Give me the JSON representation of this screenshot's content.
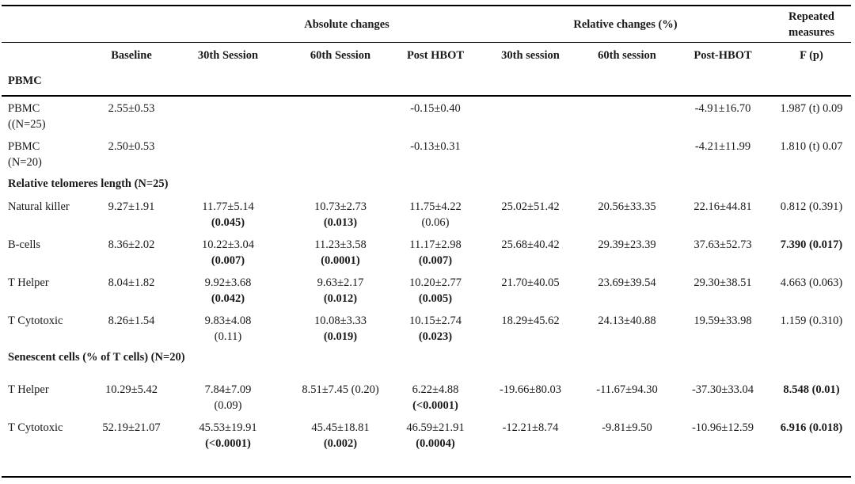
{
  "header": {
    "groups": {
      "absolute": "Absolute changes",
      "relative": "Relative changes (%)",
      "repeated_line1": "Repeated",
      "repeated_line2": "measures"
    },
    "columns": [
      "Baseline",
      "30th Session",
      "60th Session",
      "Post HBOT",
      "30th session",
      "60th session",
      "Post-HBOT",
      "F (p)"
    ]
  },
  "sections": {
    "pbmc": "PBMC",
    "telomeres": "Relative telomeres length (N=25)",
    "senescent": "Senescent cells (% of T cells) (N=20)"
  },
  "rows": [
    {
      "label": [
        "PBMC",
        "((N=25)"
      ],
      "cells": [
        [
          "2.55±0.53"
        ],
        [],
        [],
        [
          "-0.15±0.40"
        ],
        [],
        [],
        [
          "-4.91±16.70"
        ],
        [
          "1.987 (t) 0.09"
        ]
      ]
    },
    {
      "label": [
        "PBMC",
        "(N=20)"
      ],
      "cells": [
        [
          "2.50±0.53"
        ],
        [],
        [],
        [
          "-0.13±0.31"
        ],
        [],
        [],
        [
          "-4.21±11.99"
        ],
        [
          "1.810 (t) 0.07"
        ]
      ]
    },
    {
      "label": [
        "Natural killer"
      ],
      "cells": [
        [
          "9.27±1.91"
        ],
        [
          "11.77±5.14",
          "(0.045)"
        ],
        [
          "10.73±2.73",
          "(0.013)"
        ],
        [
          "11.75±4.22",
          "(0.06)"
        ],
        [
          "25.02±51.42"
        ],
        [
          "20.56±33.35"
        ],
        [
          "22.16±44.81"
        ],
        [
          "0.812 (0.391)"
        ]
      ]
    },
    {
      "label": [
        "B-cells"
      ],
      "cells": [
        [
          "8.36±2.02"
        ],
        [
          "10.22±3.04",
          "(0.007)"
        ],
        [
          "11.23±3.58",
          "(0.0001)"
        ],
        [
          "11.17±2.98",
          "(0.007)"
        ],
        [
          "25.68±40.42"
        ],
        [
          "29.39±23.39"
        ],
        [
          "37.63±52.73"
        ],
        [
          "7.390 (0.017)"
        ]
      ]
    },
    {
      "label": [
        "T Helper"
      ],
      "cells": [
        [
          "8.04±1.82"
        ],
        [
          "9.92±3.68",
          "(0.042)"
        ],
        [
          "9.63±2.17",
          "(0.012)"
        ],
        [
          "10.20±2.77",
          "(0.005)"
        ],
        [
          "21.70±40.05"
        ],
        [
          "23.69±39.54"
        ],
        [
          "29.30±38.51"
        ],
        [
          "4.663 (0.063)"
        ]
      ]
    },
    {
      "label": [
        "T Cytotoxic"
      ],
      "cells": [
        [
          "8.26±1.54"
        ],
        [
          "9.83±4.08",
          "(0.11)"
        ],
        [
          "10.08±3.33",
          "(0.019)"
        ],
        [
          "10.15±2.74",
          "(0.023)"
        ],
        [
          "18.29±45.62"
        ],
        [
          "24.13±40.88"
        ],
        [
          "19.59±33.98"
        ],
        [
          "1.159 (0.310)"
        ]
      ]
    },
    {
      "label": [
        "T Helper"
      ],
      "cells": [
        [
          "10.29±5.42"
        ],
        [
          "7.84±7.09",
          "(0.09)"
        ],
        [
          "8.51±7.45 (0.20)"
        ],
        [
          "6.22±4.88",
          "(<0.0001)"
        ],
        [
          "-19.66±80.03"
        ],
        [
          "-11.67±94.30"
        ],
        [
          "-37.30±33.04"
        ],
        [
          "8.548 (0.01)"
        ]
      ]
    },
    {
      "label": [
        "T Cytotoxic"
      ],
      "cells": [
        [
          "52.19±21.07"
        ],
        [
          "45.53±19.91",
          "(<0.0001)"
        ],
        [
          "45.45±18.81",
          "(0.002)"
        ],
        [
          "46.59±21.91",
          "(0.0004)"
        ],
        [
          "-12.21±8.74"
        ],
        [
          "-9.81±9.50"
        ],
        [
          "-10.96±12.59"
        ],
        [
          "6.916 (0.018)"
        ]
      ]
    }
  ]
}
